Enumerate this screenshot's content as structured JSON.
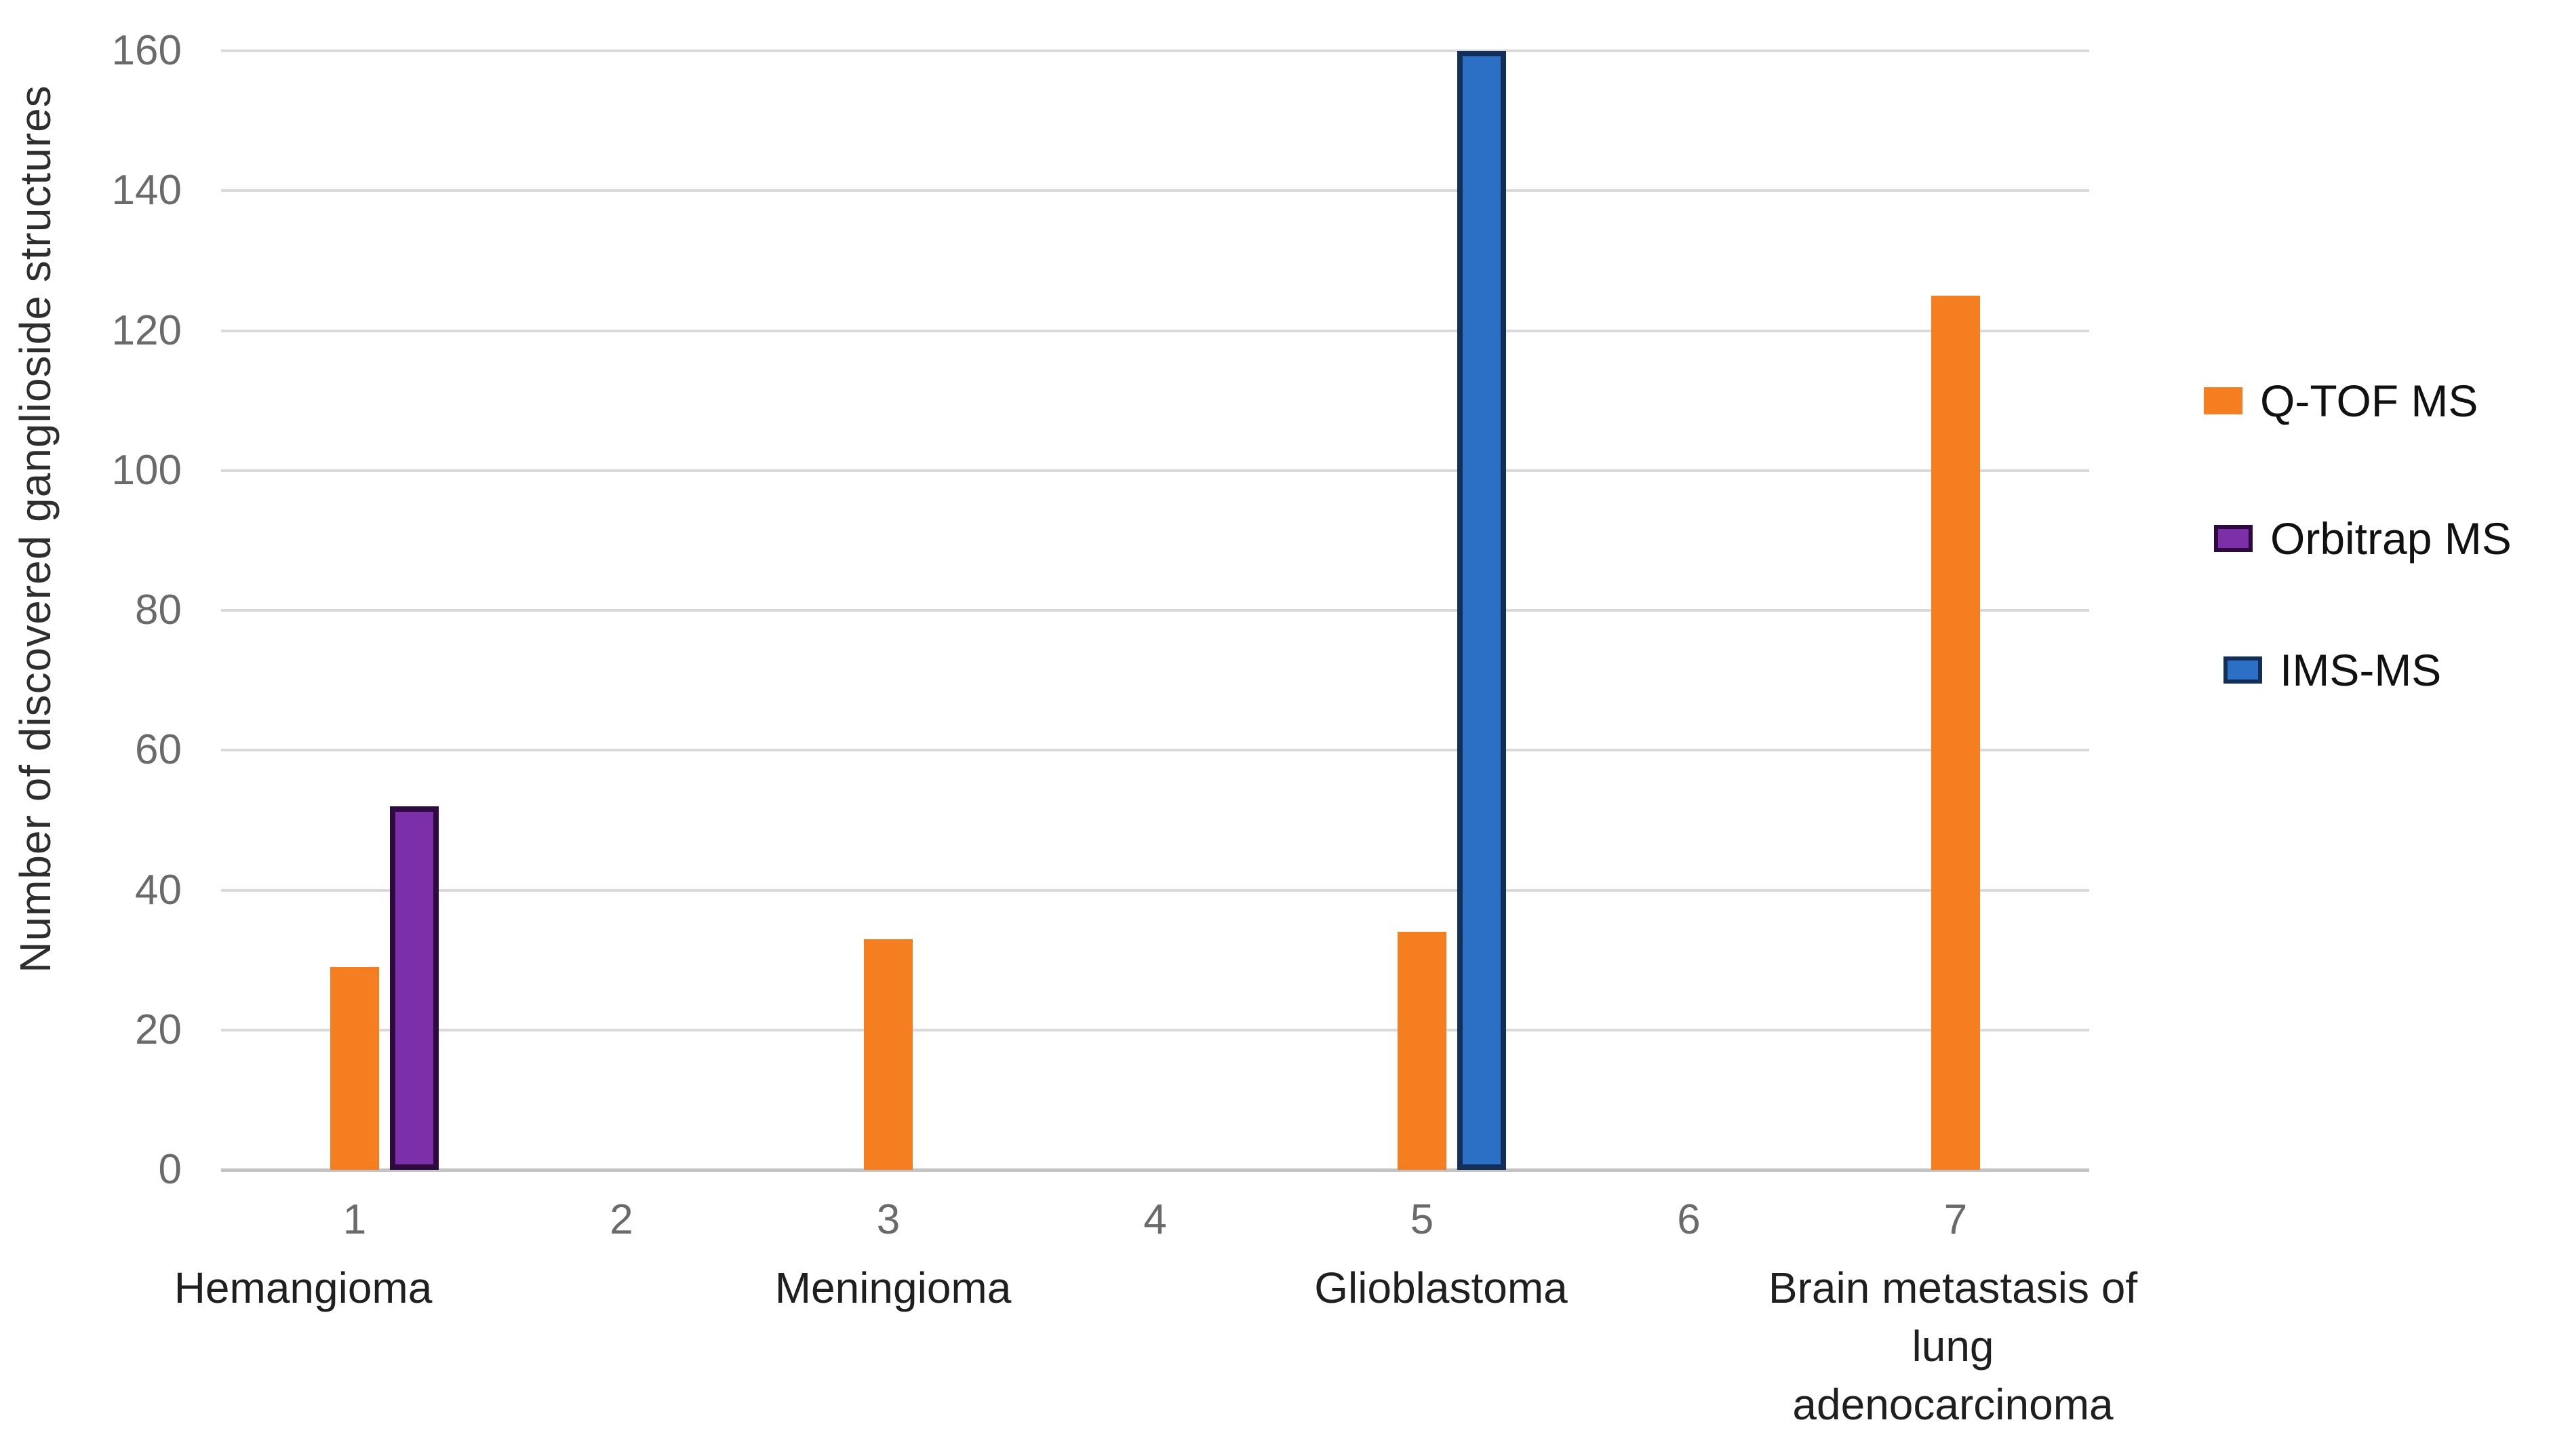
{
  "chart_data": {
    "type": "bar",
    "title": "",
    "xlabel": "",
    "ylabel": "Number of discovered ganglioside structures",
    "ylim": [
      0,
      160
    ],
    "ytick_step": 20,
    "grid": true,
    "legend_position": "right",
    "x_ticks": [
      "1",
      "2",
      "3",
      "4",
      "5",
      "6",
      "7"
    ],
    "category_labels": [
      {
        "tick": 1,
        "text": "Hemangioma",
        "lines": [
          "Hemangioma"
        ]
      },
      {
        "tick": 3,
        "text": "Meningioma",
        "lines": [
          "Meningioma"
        ]
      },
      {
        "tick": 5,
        "text": "Glioblastoma",
        "lines": [
          "Glioblastoma"
        ]
      },
      {
        "tick": 7,
        "text": "Brain metastasis of lung adenocarcinoma",
        "lines": [
          "Brain metastasis of",
          "lung",
          "adenocarcinoma"
        ]
      }
    ],
    "series": [
      {
        "name": "Q-TOF MS",
        "color": "#F57E20",
        "border": null
      },
      {
        "name": "Orbitrap MS",
        "color": "#7B2FA8",
        "border": "#2F0A3E"
      },
      {
        "name": "IMS-MS",
        "color": "#2B70C5",
        "border": "#142F57"
      }
    ],
    "bars": [
      {
        "category": 1,
        "series": "Q-TOF MS",
        "value": 29
      },
      {
        "category": 1,
        "series": "Orbitrap MS",
        "value": 52
      },
      {
        "category": 3,
        "series": "Q-TOF MS",
        "value": 33
      },
      {
        "category": 5,
        "series": "Q-TOF MS",
        "value": 34
      },
      {
        "category": 5,
        "series": "IMS-MS",
        "value": 160
      },
      {
        "category": 7,
        "series": "Q-TOF MS",
        "value": 125
      }
    ],
    "legend": [
      "Q-TOF MS",
      "Orbitrap MS",
      "IMS-MS"
    ]
  }
}
